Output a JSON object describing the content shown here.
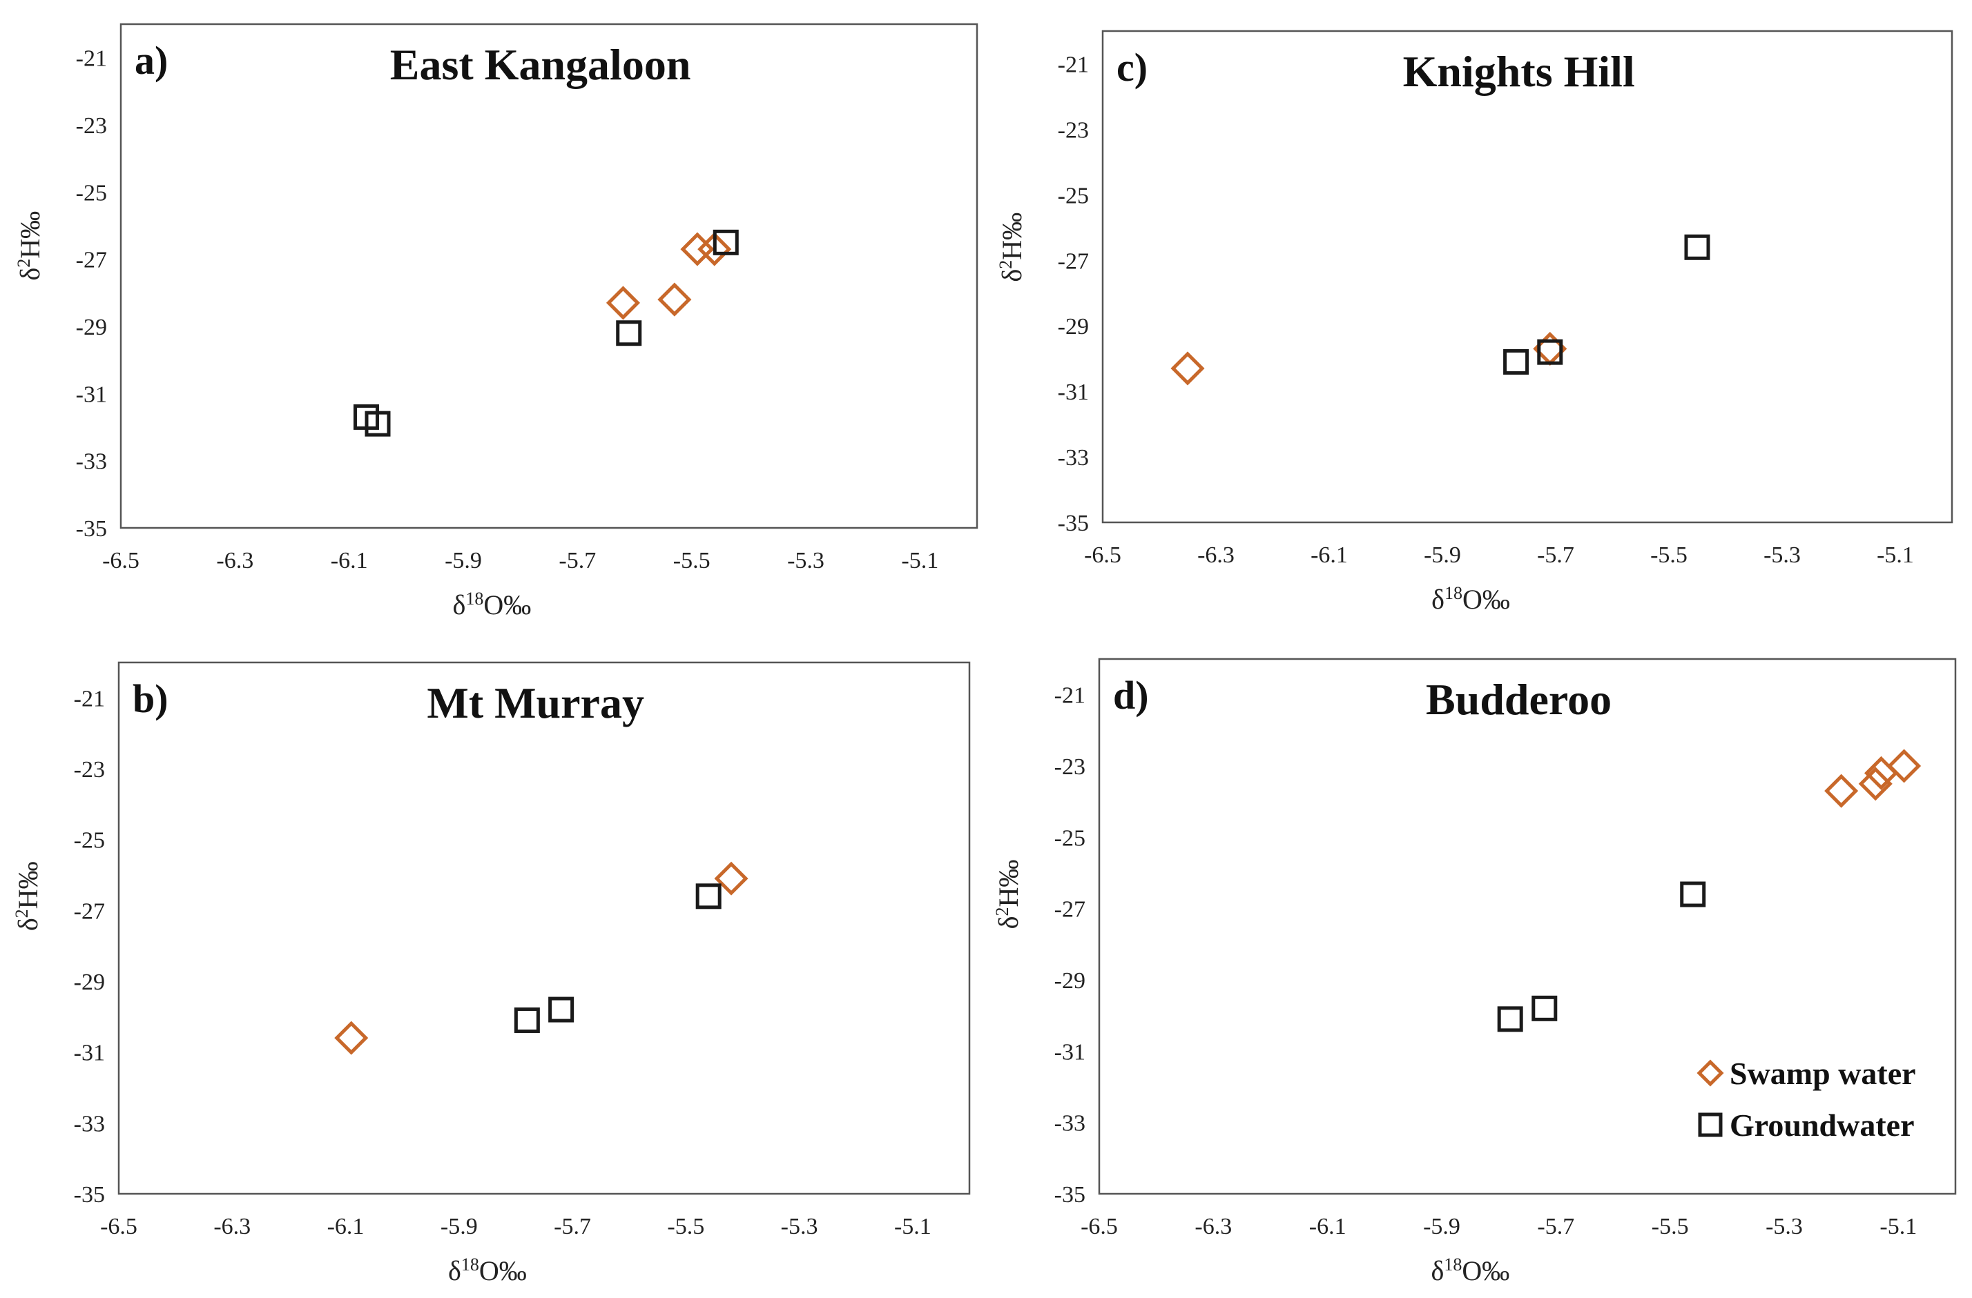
{
  "colors": {
    "swamp": "#c8682a",
    "groundwater": "#1a1a1a",
    "frame": "#555555"
  },
  "legend": {
    "swamp_label": "Swamp water",
    "groundwater_label": "Groundwater",
    "swamp_icon": "diamond-icon",
    "groundwater_icon": "square-icon"
  },
  "chart_data": [
    {
      "type": "scatter",
      "panel_label": "a)",
      "title": "East Kangaloon",
      "xlabel": "δ¹⁸O‰",
      "ylabel": "δ²H‰",
      "xlim": [
        -6.5,
        -5.0
      ],
      "ylim": [
        -35,
        -20
      ],
      "xticks": [
        -6.5,
        -6.3,
        -6.1,
        -5.9,
        -5.7,
        -5.5,
        -5.3,
        -5.1
      ],
      "yticks": [
        -21,
        -23,
        -25,
        -27,
        -29,
        -31,
        -33,
        -35
      ],
      "series": [
        {
          "name": "Swamp water",
          "marker": "diamond",
          "points": [
            [
              -5.62,
              -28.3
            ],
            [
              -5.53,
              -28.2
            ],
            [
              -5.49,
              -26.7
            ],
            [
              -5.46,
              -26.7
            ]
          ]
        },
        {
          "name": "Groundwater",
          "marker": "square",
          "points": [
            [
              -5.44,
              -26.5
            ],
            [
              -5.61,
              -29.2
            ],
            [
              -6.07,
              -31.7
            ],
            [
              -6.05,
              -31.9
            ]
          ]
        }
      ]
    },
    {
      "type": "scatter",
      "panel_label": "b)",
      "title": "Mt Murray",
      "xlabel": "δ¹⁸O‰",
      "ylabel": "δ²H‰",
      "xlim": [
        -6.5,
        -5.0
      ],
      "ylim": [
        -35,
        -20
      ],
      "xticks": [
        -6.5,
        -6.3,
        -6.1,
        -5.9,
        -5.7,
        -5.5,
        -5.3,
        -5.1
      ],
      "yticks": [
        -21,
        -23,
        -25,
        -27,
        -29,
        -31,
        -33,
        -35
      ],
      "series": [
        {
          "name": "Swamp water",
          "marker": "diamond",
          "points": [
            [
              -6.09,
              -30.6
            ],
            [
              -5.42,
              -26.1
            ]
          ]
        },
        {
          "name": "Groundwater",
          "marker": "square",
          "points": [
            [
              -5.46,
              -26.6
            ],
            [
              -5.78,
              -30.1
            ],
            [
              -5.72,
              -29.8
            ]
          ]
        }
      ]
    },
    {
      "type": "scatter",
      "panel_label": "c)",
      "title": "Knights Hill",
      "xlabel": "δ¹⁸O‰",
      "ylabel": "δ²H‰",
      "xlim": [
        -6.5,
        -5.0
      ],
      "ylim": [
        -35,
        -20
      ],
      "xticks": [
        -6.5,
        -6.3,
        -6.1,
        -5.9,
        -5.7,
        -5.5,
        -5.3,
        -5.1
      ],
      "yticks": [
        -21,
        -23,
        -25,
        -27,
        -29,
        -31,
        -33,
        -35
      ],
      "series": [
        {
          "name": "Swamp water",
          "marker": "diamond",
          "points": [
            [
              -6.35,
              -30.3
            ],
            [
              -5.71,
              -29.7
            ]
          ]
        },
        {
          "name": "Groundwater",
          "marker": "square",
          "points": [
            [
              -5.45,
              -26.6
            ],
            [
              -5.77,
              -30.1
            ],
            [
              -5.71,
              -29.8
            ]
          ]
        }
      ]
    },
    {
      "type": "scatter",
      "panel_label": "d)",
      "title": "Budderoo",
      "xlabel": "δ¹⁸O‰",
      "ylabel": "δ²H‰",
      "xlim": [
        -6.5,
        -5.0
      ],
      "ylim": [
        -35,
        -20
      ],
      "xticks": [
        -6.5,
        -6.3,
        -6.1,
        -5.9,
        -5.7,
        -5.5,
        -5.3,
        -5.1
      ],
      "yticks": [
        -21,
        -23,
        -25,
        -27,
        -29,
        -31,
        -33,
        -35
      ],
      "legend_position": "bottom-right",
      "series": [
        {
          "name": "Swamp water",
          "marker": "diamond",
          "points": [
            [
              -5.2,
              -23.7
            ],
            [
              -5.14,
              -23.5
            ],
            [
              -5.13,
              -23.2
            ],
            [
              -5.09,
              -23.0
            ]
          ]
        },
        {
          "name": "Groundwater",
          "marker": "square",
          "points": [
            [
              -5.46,
              -26.6
            ],
            [
              -5.78,
              -30.1
            ],
            [
              -5.72,
              -29.8
            ]
          ]
        }
      ]
    }
  ]
}
